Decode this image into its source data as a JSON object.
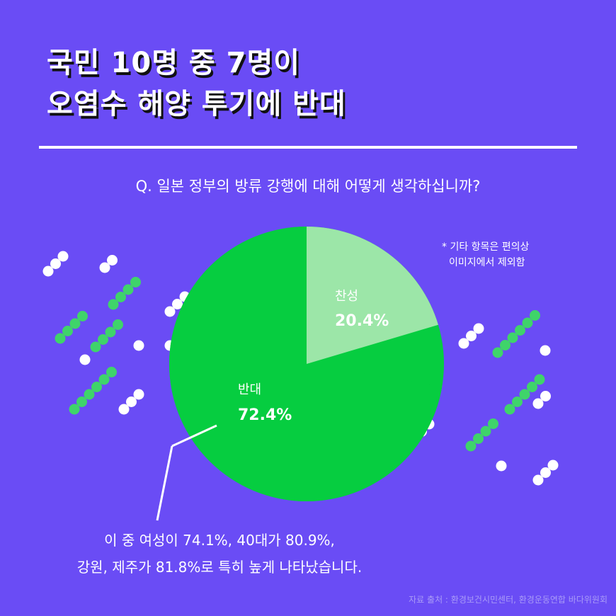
{
  "title": {
    "line1": "국민 10명 중 7명이",
    "line2": "오염수 해양 투기에 반대"
  },
  "question": "Q. 일본 정부의 방류 강행에 대해 어떻게 생각하십니까?",
  "note": {
    "line1": "* 기타 항목은 편의상",
    "line2": "이미지에서 제외함"
  },
  "chart_data": {
    "type": "pie",
    "slices": [
      {
        "label": "찬성",
        "value_label": "20.4%",
        "value": 20.4,
        "color": "#9ce6a8"
      },
      {
        "label": "반대",
        "value_label": "72.4%",
        "value": 72.4,
        "color": "#06cd40"
      }
    ]
  },
  "summary": {
    "line1": "이 중 여성이 74.1%, 40대가 80.9%,",
    "line2": "강원, 제주가 81.8%로 특히 높게 나타났습니다."
  },
  "source": "자료 출처 : 환경보건시민센터, 환경운동연합 바다위원회",
  "colors": {
    "background": "#6a4cf5",
    "dot_green": "#3fd46a",
    "dot_white": "#ffffff"
  }
}
